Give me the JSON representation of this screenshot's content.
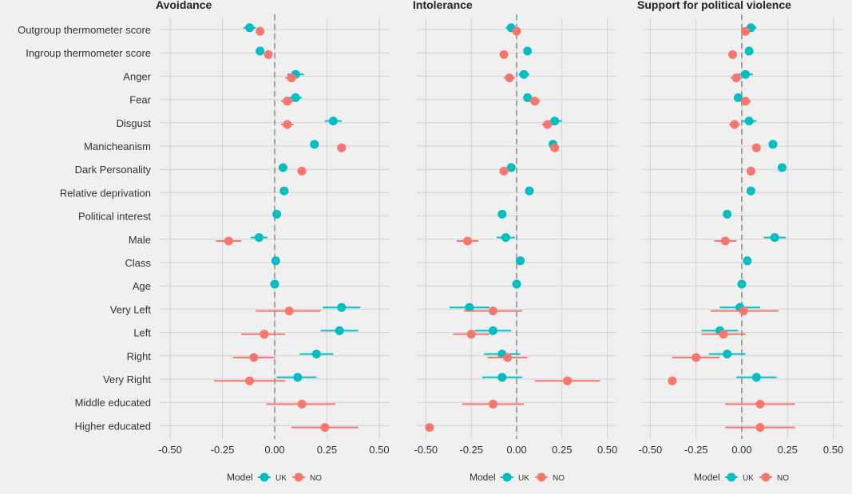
{
  "chart_data": {
    "type": "scatter",
    "subtype": "dot-and-whisker",
    "grid": true,
    "xlim": [
      -0.55,
      0.55
    ],
    "xticks": [
      -0.5,
      -0.25,
      0,
      0.25,
      0.5
    ],
    "xtick_labels": [
      "-0.50",
      "-0.25",
      "0.00",
      "0.25",
      "0.50"
    ],
    "reference_line": 0,
    "categories": [
      "Outgroup thermometer score",
      "Ingroup thermometer score",
      "Anger",
      "Fear",
      "Disgust",
      "Manicheanism",
      "Dark Personality",
      "Relative deprivation",
      "Political interest",
      "Male",
      "Class",
      "Age",
      "Very Left",
      "Left",
      "Right",
      "Very Right",
      "Middle educated",
      "Higher educated"
    ],
    "legend": {
      "title": "Model",
      "position": "bottom",
      "entries": [
        {
          "name": "UK",
          "color": "#00bfc4"
        },
        {
          "name": "NO",
          "color": "#f8766d"
        }
      ]
    },
    "panels": [
      {
        "title": "Avoidance",
        "series": [
          {
            "name": "UK",
            "color": "#00bfc4",
            "values": [
              -0.12,
              -0.07,
              0.1,
              0.1,
              0.28,
              0.19,
              0.04,
              0.045,
              0.01,
              -0.075,
              0.005,
              0.0,
              0.32,
              0.31,
              0.2,
              0.11,
              null,
              null
            ],
            "lower": [
              -0.15,
              -0.09,
              0.06,
              0.07,
              0.24,
              0.17,
              0.02,
              0.025,
              -0.01,
              -0.115,
              -0.005,
              -0.005,
              0.23,
              0.22,
              0.12,
              0.01,
              null,
              null
            ],
            "upper": [
              -0.09,
              -0.05,
              0.14,
              0.13,
              0.32,
              0.21,
              0.06,
              0.065,
              0.03,
              -0.035,
              0.015,
              0.005,
              0.41,
              0.4,
              0.28,
              0.2,
              null,
              null
            ]
          },
          {
            "name": "NO",
            "color": "#f8766d",
            "values": [
              -0.07,
              -0.03,
              0.08,
              0.06,
              0.06,
              0.32,
              0.13,
              null,
              null,
              -0.22,
              null,
              null,
              0.07,
              -0.05,
              -0.1,
              -0.12,
              0.13,
              0.24
            ],
            "lower": [
              -0.09,
              -0.05,
              0.05,
              0.03,
              0.03,
              0.3,
              0.11,
              null,
              null,
              -0.28,
              null,
              null,
              -0.09,
              -0.16,
              -0.2,
              -0.29,
              -0.04,
              0.08
            ],
            "upper": [
              -0.05,
              -0.01,
              0.11,
              0.09,
              0.09,
              0.34,
              0.15,
              null,
              null,
              -0.16,
              null,
              null,
              0.22,
              0.05,
              0.0,
              0.05,
              0.29,
              0.4
            ]
          }
        ]
      },
      {
        "title": "Intolerance",
        "series": [
          {
            "name": "UK",
            "color": "#00bfc4",
            "values": [
              -0.03,
              0.06,
              0.04,
              0.06,
              0.21,
              0.2,
              -0.03,
              0.07,
              -0.08,
              -0.06,
              0.02,
              0.0,
              -0.26,
              -0.13,
              -0.08,
              -0.08,
              null,
              null
            ],
            "lower": [
              -0.06,
              0.04,
              0.01,
              0.04,
              0.17,
              0.18,
              -0.05,
              0.05,
              -0.1,
              -0.11,
              0.01,
              -0.005,
              -0.37,
              -0.23,
              -0.18,
              -0.19,
              null,
              null
            ],
            "upper": [
              0.0,
              0.08,
              0.07,
              0.08,
              0.25,
              0.22,
              -0.01,
              0.09,
              -0.06,
              -0.01,
              0.03,
              0.005,
              -0.15,
              -0.03,
              0.02,
              0.03,
              null,
              null
            ]
          },
          {
            "name": "NO",
            "color": "#f8766d",
            "values": [
              0.0,
              -0.07,
              -0.04,
              0.1,
              0.17,
              0.21,
              -0.07,
              null,
              null,
              -0.27,
              null,
              null,
              -0.13,
              -0.25,
              -0.05,
              0.28,
              -0.13,
              -0.48
            ],
            "lower": [
              -0.02,
              -0.09,
              -0.07,
              0.07,
              0.14,
              0.19,
              -0.09,
              null,
              null,
              -0.33,
              null,
              null,
              -0.29,
              -0.35,
              -0.16,
              0.1,
              -0.3,
              -0.49
            ],
            "upper": [
              0.02,
              -0.05,
              -0.01,
              0.13,
              0.2,
              0.23,
              -0.05,
              null,
              null,
              -0.21,
              null,
              null,
              0.03,
              -0.15,
              0.06,
              0.46,
              0.04,
              -0.47
            ]
          }
        ]
      },
      {
        "title": "Support for political violence",
        "series": [
          {
            "name": "UK",
            "color": "#00bfc4",
            "values": [
              0.05,
              0.04,
              0.02,
              -0.02,
              0.04,
              0.17,
              0.22,
              0.05,
              -0.08,
              0.18,
              0.03,
              0.0,
              -0.01,
              -0.12,
              -0.08,
              0.08,
              null,
              null
            ],
            "lower": [
              0.02,
              0.02,
              -0.02,
              -0.04,
              0.0,
              0.15,
              0.2,
              0.03,
              -0.1,
              0.12,
              0.02,
              -0.005,
              -0.12,
              -0.22,
              -0.18,
              -0.03,
              null,
              null
            ],
            "upper": [
              0.08,
              0.06,
              0.06,
              0.0,
              0.08,
              0.19,
              0.24,
              0.07,
              -0.06,
              0.24,
              0.04,
              0.005,
              0.1,
              -0.02,
              0.02,
              0.19,
              null,
              null
            ]
          },
          {
            "name": "NO",
            "color": "#f8766d",
            "values": [
              0.02,
              -0.05,
              -0.03,
              0.02,
              -0.04,
              0.08,
              0.05,
              null,
              null,
              -0.09,
              null,
              null,
              0.01,
              -0.1,
              -0.25,
              -0.38,
              0.1,
              0.1
            ],
            "lower": [
              0.0,
              -0.07,
              -0.06,
              -0.01,
              -0.07,
              0.06,
              0.03,
              null,
              null,
              -0.15,
              null,
              null,
              -0.17,
              -0.22,
              -0.38,
              -0.39,
              -0.09,
              -0.09
            ],
            "upper": [
              0.04,
              -0.03,
              0.0,
              0.05,
              -0.01,
              0.1,
              0.07,
              null,
              null,
              -0.03,
              null,
              null,
              0.2,
              0.02,
              -0.12,
              -0.37,
              0.29,
              0.29
            ]
          }
        ]
      }
    ]
  }
}
